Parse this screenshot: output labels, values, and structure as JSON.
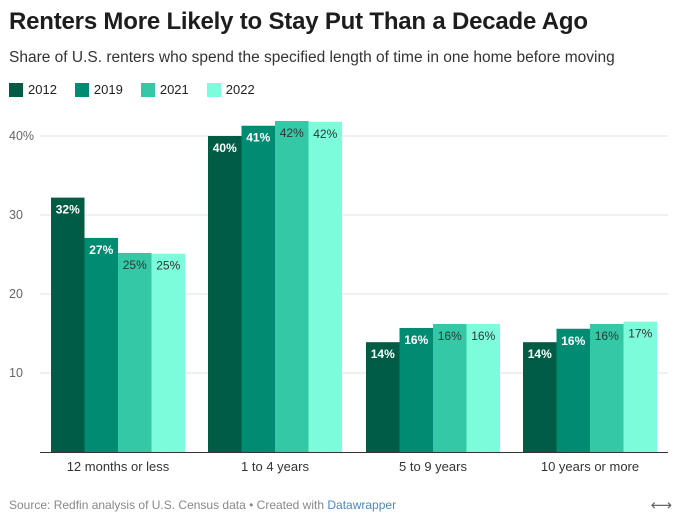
{
  "page": {
    "title": "Renters More Likely to Stay Put Than a Decade Ago",
    "subtitle": "Share of U.S. renters who spend the specified length of time in one home before moving",
    "source_prefix": "Source: Redfin analysis of U.S. Census data • Created with ",
    "source_link": "Datawrapper",
    "expand_glyph": "⟷"
  },
  "chart_data": {
    "type": "bar",
    "title": "Renters More Likely to Stay Put Than a Decade Ago",
    "xlabel": "",
    "ylabel": "",
    "ylim": [
      0,
      42
    ],
    "yticks": [
      {
        "value": 10,
        "label": "10"
      },
      {
        "value": 20,
        "label": "20"
      },
      {
        "value": 30,
        "label": "30"
      },
      {
        "value": 40,
        "label": "40%"
      }
    ],
    "categories": [
      "12 months or less",
      "1 to 4 years",
      "5 to 9 years",
      "10 years or more"
    ],
    "series": [
      {
        "name": "2012",
        "color": "#005c44",
        "label_color": "#ffffff",
        "values": [
          32.2,
          40.0,
          13.9,
          13.9
        ],
        "labels": [
          "32%",
          "40%",
          "14%",
          "14%"
        ]
      },
      {
        "name": "2019",
        "color": "#008c72",
        "label_color": "#ffffff",
        "values": [
          27.1,
          41.3,
          15.7,
          15.6
        ],
        "labels": [
          "27%",
          "41%",
          "16%",
          "16%"
        ]
      },
      {
        "name": "2021",
        "color": "#34c8a6",
        "label_color": "#333333",
        "values": [
          25.2,
          41.9,
          16.2,
          16.2
        ],
        "labels": [
          "25%",
          "42%",
          "16%",
          "16%"
        ]
      },
      {
        "name": "2022",
        "color": "#7dfcdb",
        "label_color": "#333333",
        "values": [
          25.1,
          41.8,
          16.2,
          16.5
        ],
        "labels": [
          "25%",
          "42%",
          "16%",
          "17%"
        ]
      }
    ]
  }
}
